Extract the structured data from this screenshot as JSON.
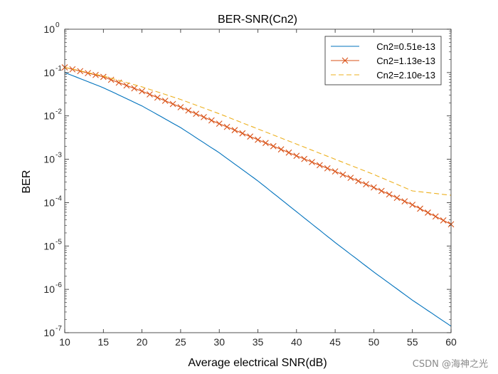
{
  "chart_data": {
    "type": "line",
    "title": "BER-SNR(Cn2)",
    "xlabel": "Average electrical SNR(dB)",
    "ylabel": "BER",
    "xlim": [
      10,
      60
    ],
    "ylim_exponent": [
      -7,
      0
    ],
    "y_scale": "log",
    "x_ticks": [
      "10",
      "15",
      "20",
      "25",
      "30",
      "35",
      "40",
      "45",
      "50",
      "55",
      "60"
    ],
    "y_ticks": [
      {
        "base": "10",
        "exp": "0"
      },
      {
        "base": "10",
        "exp": "-1"
      },
      {
        "base": "10",
        "exp": "-2"
      },
      {
        "base": "10",
        "exp": "-3"
      },
      {
        "base": "10",
        "exp": "-4"
      },
      {
        "base": "10",
        "exp": "-5"
      },
      {
        "base": "10",
        "exp": "-6"
      },
      {
        "base": "10",
        "exp": "-7"
      }
    ],
    "legend_position": "top-right",
    "series": [
      {
        "name": "Cn2=0.51e-13",
        "color": "#0072BD",
        "style": "solid",
        "marker": "none",
        "x": [
          10,
          15,
          20,
          25,
          30,
          35,
          40,
          45,
          50,
          55,
          60
        ],
        "log10_y": [
          -1.0,
          -1.35,
          -1.77,
          -2.27,
          -2.85,
          -3.5,
          -4.21,
          -4.92,
          -5.6,
          -6.25,
          -6.85
        ]
      },
      {
        "name": "Cn2=1.13e-13",
        "color": "#D95319",
        "style": "solid",
        "marker": "x",
        "x": [
          10,
          15,
          20,
          25,
          30,
          35,
          40,
          45,
          50,
          55,
          60
        ],
        "log10_y": [
          -0.88,
          -1.1,
          -1.43,
          -1.8,
          -2.18,
          -2.55,
          -2.92,
          -3.28,
          -3.65,
          -4.05,
          -4.5
        ]
      },
      {
        "name": "Cn2=2.10e-13",
        "color": "#EDB120",
        "style": "dashed",
        "marker": "none",
        "x": [
          10,
          15,
          20,
          25,
          30,
          35,
          40,
          45,
          50,
          55,
          60
        ],
        "log10_y": [
          -0.88,
          -1.08,
          -1.33,
          -1.62,
          -1.95,
          -2.3,
          -2.65,
          -3.0,
          -3.35,
          -3.73,
          -3.83
        ]
      }
    ]
  },
  "watermark": "CSDN @海神之光"
}
